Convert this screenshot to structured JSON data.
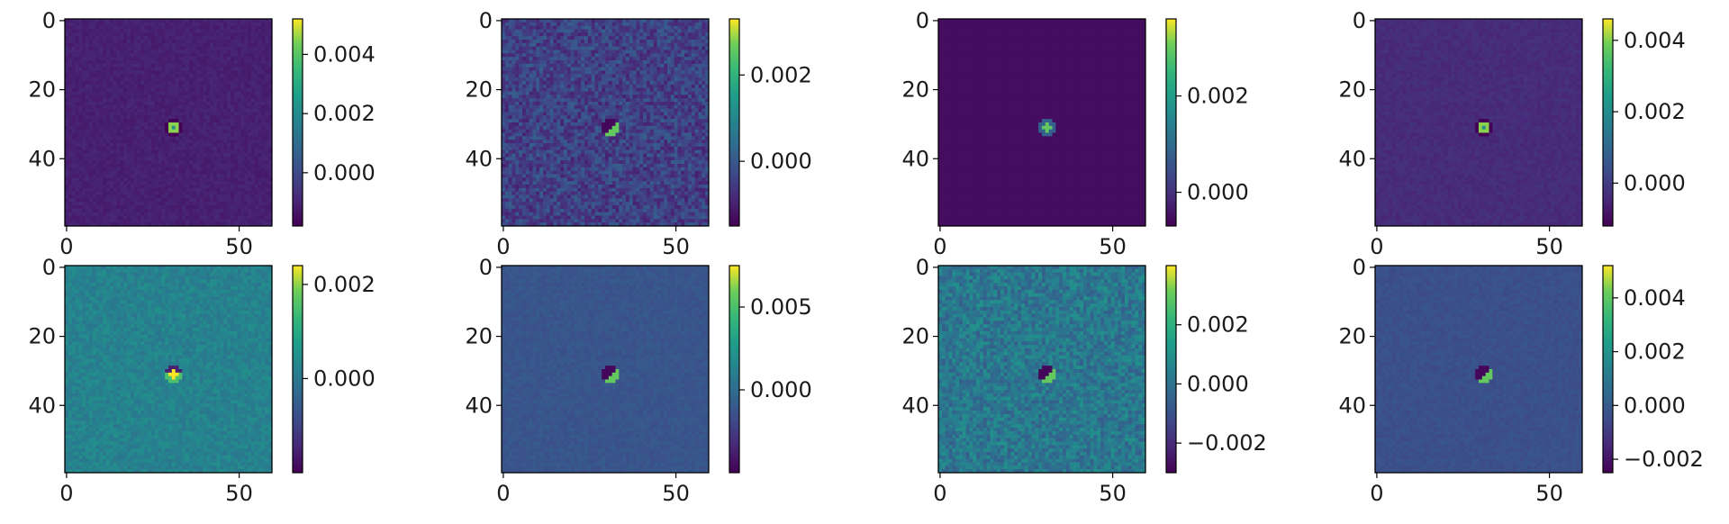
{
  "figure": {
    "layout": "2x4 grid of image panels with colorbars"
  },
  "chart_data": [
    {
      "type": "heatmap",
      "colormap": "viridis",
      "background_level": 0.1,
      "noise": "low",
      "blob": "ring",
      "xticks": [
        "0",
        "50"
      ],
      "yticks": [
        "0",
        "20",
        "40"
      ],
      "cbar_range": [
        -0.0018,
        0.0052
      ],
      "cbar_ticks": [
        0.0,
        0.002,
        0.004
      ],
      "cbar_tick_labels": [
        "0.000",
        "0.002",
        "0.004"
      ]
    },
    {
      "type": "heatmap",
      "colormap": "viridis",
      "background_level": 0.22,
      "noise": "high",
      "blob": "dipole",
      "xticks": [
        "0",
        "50"
      ],
      "yticks": [
        "0",
        "20",
        "40"
      ],
      "cbar_range": [
        -0.0015,
        0.0033
      ],
      "cbar_ticks": [
        0.0,
        0.002
      ],
      "cbar_tick_labels": [
        "0.000",
        "0.002"
      ]
    },
    {
      "type": "heatmap",
      "colormap": "viridis",
      "background_level": 0.04,
      "noise": "none",
      "blob": "spot",
      "xticks": [
        "0",
        "50"
      ],
      "yticks": [
        "0",
        "20",
        "40"
      ],
      "cbar_range": [
        -0.0007,
        0.0036
      ],
      "cbar_ticks": [
        0.0,
        0.002
      ],
      "cbar_tick_labels": [
        "0.000",
        "0.002"
      ]
    },
    {
      "type": "heatmap",
      "colormap": "viridis",
      "background_level": 0.14,
      "noise": "low",
      "blob": "ring",
      "xticks": [
        "0",
        "50"
      ],
      "yticks": [
        "0",
        "20",
        "40"
      ],
      "cbar_range": [
        -0.0012,
        0.0046
      ],
      "cbar_ticks": [
        0.0,
        0.002,
        0.004
      ],
      "cbar_tick_labels": [
        "0.000",
        "0.002",
        "0.004"
      ]
    },
    {
      "type": "heatmap",
      "colormap": "viridis",
      "background_level": 0.5,
      "noise": "med",
      "blob": "bright",
      "xticks": [
        "0",
        "50"
      ],
      "yticks": [
        "0",
        "20",
        "40"
      ],
      "cbar_range": [
        -0.002,
        0.0024
      ],
      "cbar_ticks": [
        0.0,
        0.002
      ],
      "cbar_tick_labels": [
        "0.000",
        "0.002"
      ]
    },
    {
      "type": "heatmap",
      "colormap": "viridis",
      "background_level": 0.3,
      "noise": "low",
      "blob": "dipole",
      "xticks": [
        "0",
        "50"
      ],
      "yticks": [
        "0",
        "20",
        "40"
      ],
      "cbar_range": [
        -0.005,
        0.0075
      ],
      "cbar_ticks": [
        0.0,
        0.005
      ],
      "cbar_tick_labels": [
        "0.000",
        "0.005"
      ]
    },
    {
      "type": "heatmap",
      "colormap": "viridis",
      "background_level": 0.45,
      "noise": "high",
      "blob": "dipole",
      "xticks": [
        "0",
        "50"
      ],
      "yticks": [
        "0",
        "20",
        "40"
      ],
      "cbar_range": [
        -0.003,
        0.004
      ],
      "cbar_ticks": [
        -0.002,
        0.0,
        0.002
      ],
      "cbar_tick_labels": [
        "−0.002",
        "0.000",
        "0.002"
      ]
    },
    {
      "type": "heatmap",
      "colormap": "viridis",
      "background_level": 0.28,
      "noise": "low",
      "blob": "dipole",
      "xticks": [
        "0",
        "50"
      ],
      "yticks": [
        "0",
        "20",
        "40"
      ],
      "cbar_range": [
        -0.0025,
        0.0052
      ],
      "cbar_ticks": [
        -0.002,
        0.0,
        0.002,
        0.004
      ],
      "cbar_tick_labels": [
        "−0.002",
        "0.000",
        "0.002",
        "0.004"
      ]
    }
  ]
}
